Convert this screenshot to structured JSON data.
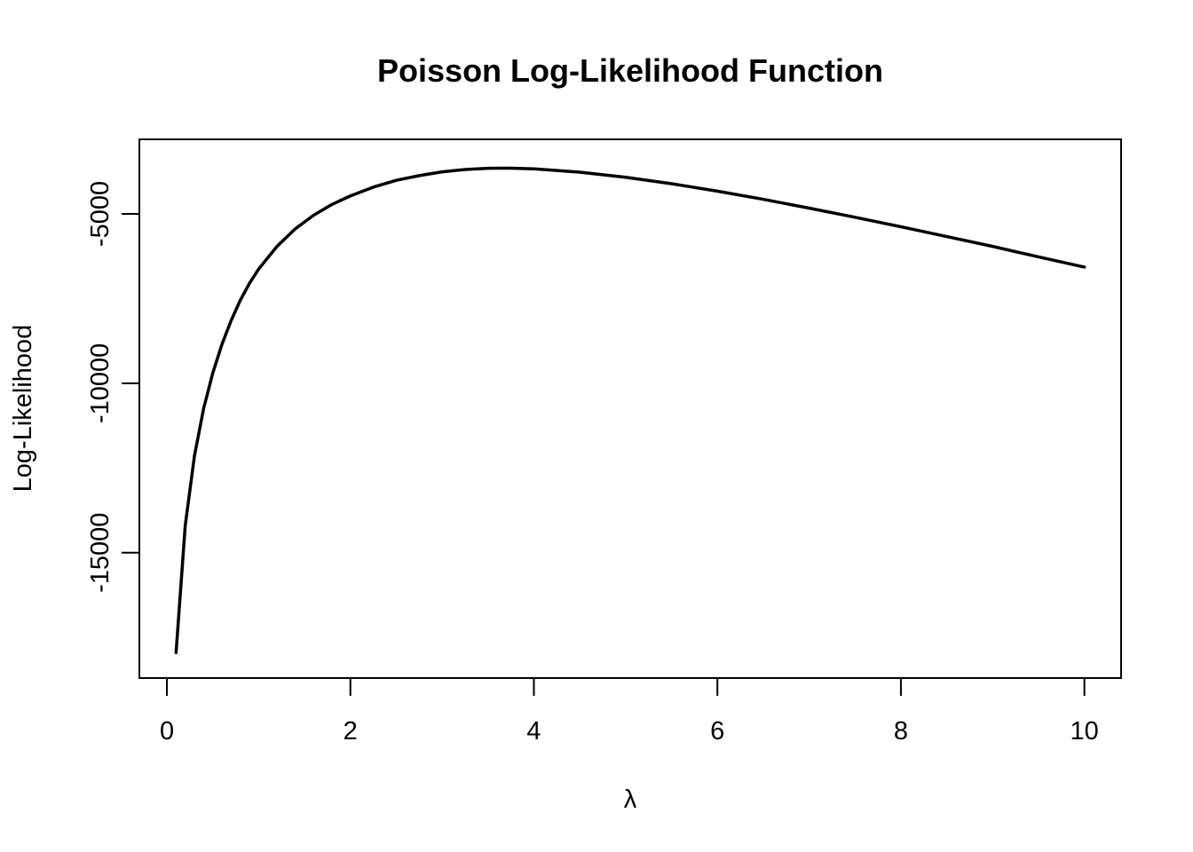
{
  "chart_data": {
    "type": "line",
    "title": "Poisson Log-Likelihood Function",
    "xlabel": "λ",
    "ylabel": "Log-Likelihood",
    "xlim": [
      -0.3,
      10.4
    ],
    "ylim": [
      -18700,
      -2800
    ],
    "x_ticks": [
      0,
      2,
      4,
      6,
      8,
      10
    ],
    "x_tick_labels": [
      "0",
      "2",
      "4",
      "6",
      "8",
      "10"
    ],
    "y_ticks": [
      -15000,
      -10000,
      -5000
    ],
    "y_tick_labels": [
      "-15000",
      "-10000",
      "-5000"
    ],
    "grid": false,
    "legend": "none",
    "line_color": "#000000",
    "series": [
      {
        "x": [
          0.1,
          0.2,
          0.3,
          0.4,
          0.5,
          0.6,
          0.7,
          0.8,
          0.9,
          1.0,
          1.2,
          1.4,
          1.6,
          1.8,
          2.0,
          2.25,
          2.5,
          2.75,
          3.0,
          3.25,
          3.5,
          3.65,
          3.75,
          4.0,
          4.5,
          5.0,
          5.5,
          6.0,
          6.5,
          7.0,
          7.5,
          8.0,
          8.5,
          9.0,
          9.5,
          10.0
        ],
        "y": [
          -17950,
          -14200,
          -12150,
          -10750,
          -9700,
          -8850,
          -8150,
          -7550,
          -7050,
          -6630,
          -5960,
          -5440,
          -5040,
          -4720,
          -4470,
          -4210,
          -4010,
          -3870,
          -3760,
          -3690,
          -3655,
          -3650,
          -3652,
          -3670,
          -3770,
          -3920,
          -4110,
          -4330,
          -4570,
          -4830,
          -5100,
          -5380,
          -5670,
          -5960,
          -6270,
          -6570
        ]
      }
    ]
  }
}
